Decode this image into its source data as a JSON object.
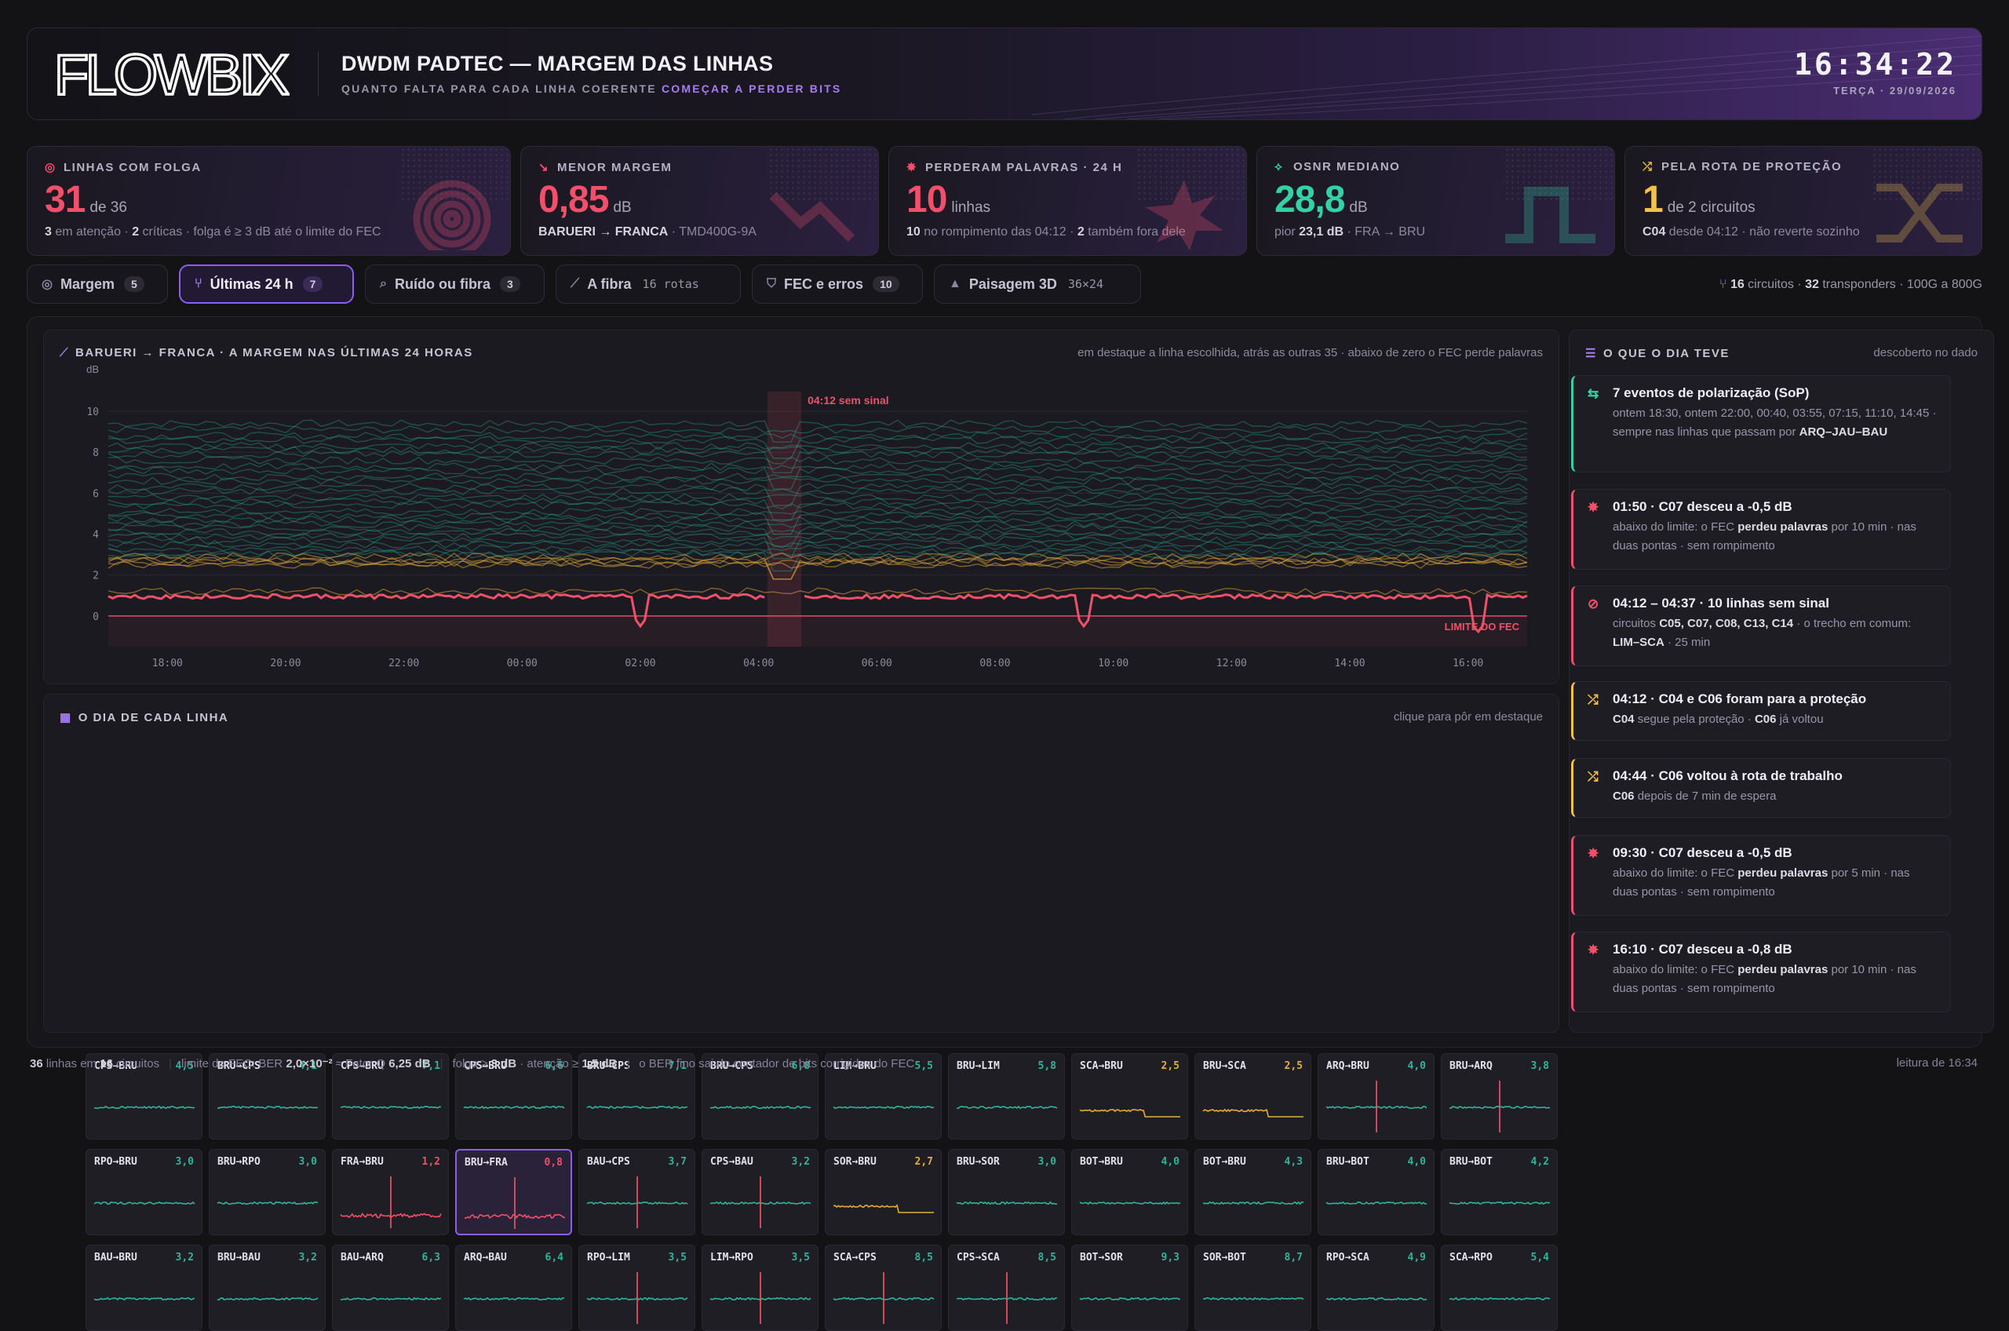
{
  "header": {
    "logo": "FLOWBIX",
    "title": "DWDM PADTEC — MARGEM DAS LINHAS",
    "subtitle_pre": "QUANTO FALTA PARA CADA LINHA COERENTE",
    "subtitle_accent": "COMEÇAR A PERDER BITS",
    "time": "16:34:22",
    "date": "TERÇA · 29/09/2026"
  },
  "kpis": [
    {
      "label": "LINHAS COM FOLGA",
      "big": "31",
      "unit": "de 36",
      "foot_a": "3",
      "foot_b": " em atenção · ",
      "foot_c": "2",
      "foot_d": " críticas · folga é ≥ 3 dB até o limite do FEC",
      "color": "#f2506a",
      "icon": "target-icon"
    },
    {
      "label": "MENOR MARGEM",
      "big": "0,85",
      "unit": "dB",
      "foot_a": "BARUERI → FRANCA",
      "foot_b": " · TMD400G-9A",
      "foot_c": "",
      "foot_d": "",
      "color": "#f2506a",
      "icon": "trend-down-icon"
    },
    {
      "label": "PERDERAM PALAVRAS · 24 H",
      "big": "10",
      "unit": "linhas",
      "foot_a": "10",
      "foot_b": " no rompimento das 04:12 · ",
      "foot_c": "2",
      "foot_d": " também fora dele",
      "color": "#f2506a",
      "icon": "burst-icon"
    },
    {
      "label": "OSNR MEDIANO",
      "big": "28,8",
      "unit": "dB",
      "foot_a": "",
      "foot_b": "pior ",
      "foot_c": "23,1 dB",
      "foot_d": " · FRA → BRU",
      "color": "#33d1a5",
      "icon": "pulse-icon"
    },
    {
      "label": "PELA ROTA DE PROTEÇÃO",
      "big": "1",
      "unit": "de 2 circuitos",
      "foot_a": "C04",
      "foot_b": " desde 04:12 · não reverte sozinho",
      "foot_c": "",
      "foot_d": "",
      "color": "#f3c24a",
      "icon": "shuffle-icon"
    }
  ],
  "tabs": [
    {
      "label": "Margem",
      "badge": "5",
      "meta": "",
      "icon": "◎"
    },
    {
      "label": "Últimas 24 h",
      "badge": "7",
      "meta": "",
      "icon": "⑂"
    },
    {
      "label": "Ruído ou fibra",
      "badge": "3",
      "meta": "",
      "icon": "⌕"
    },
    {
      "label": "A fibra",
      "badge": "",
      "meta": "16 rotas",
      "icon": "⟋"
    },
    {
      "label": "FEC e erros",
      "badge": "10",
      "meta": "",
      "icon": "⛉"
    },
    {
      "label": "Paisagem 3D",
      "badge": "",
      "meta": "36×24",
      "icon": "▲"
    }
  ],
  "tabs_right": {
    "a": "16",
    "b": " circuitos · ",
    "c": "32",
    "d": " transponders · 100G a 800G"
  },
  "chart_panel": {
    "title": "BARUERI → FRANCA · A MARGEM NAS ÚLTIMAS 24 HORAS",
    "note": "em destaque a linha escolhida, atrás as outras 35 · abaixo de zero o FEC perde palavras",
    "outage_label": "04:12 sem sinal",
    "limit_label": "LIMITE DO FEC"
  },
  "chart_data": {
    "type": "line",
    "ylabel": "dB",
    "ylim": [
      -1.5,
      10.5
    ],
    "yticks": [
      "10",
      "8",
      "6",
      "4",
      "2",
      "0"
    ],
    "xticks": [
      "18:00",
      "20:00",
      "22:00",
      "00:00",
      "02:00",
      "04:00",
      "06:00",
      "08:00",
      "10:00",
      "12:00",
      "14:00",
      "16:00"
    ],
    "highlight_series": {
      "name": "BARUERI → FRANCA",
      "baseline": 0.95,
      "dips": [
        {
          "x": "02:00",
          "y": -0.5
        },
        {
          "x": "09:30",
          "y": -0.5
        },
        {
          "x": "16:10",
          "y": -0.8
        }
      ],
      "outage": "04:12 – 04:37"
    },
    "background_series_count": 35,
    "colors": {
      "highlight": "#f2506a",
      "healthy": "#2fb59a",
      "warning": "#d6a23a"
    }
  },
  "grid_panel": {
    "title": "O DIA DE CADA LINHA",
    "note": "clique para pôr em destaque",
    "lines": [
      {
        "name": "CPS→BRU",
        "val": "4,5",
        "state": "ok",
        "spike": false
      },
      {
        "name": "BRU→CPS",
        "val": "4,1",
        "state": "ok",
        "spike": false
      },
      {
        "name": "CPS→BRU",
        "val": "7,1",
        "state": "ok",
        "spike": false
      },
      {
        "name": "CPS→BRU",
        "val": "6,6",
        "state": "ok",
        "spike": false
      },
      {
        "name": "BRU→CPS",
        "val": "7,1",
        "state": "ok",
        "spike": false
      },
      {
        "name": "BRU→CPS",
        "val": "6,8",
        "state": "ok",
        "spike": false
      },
      {
        "name": "LIM→BRU",
        "val": "5,5",
        "state": "ok",
        "spike": false
      },
      {
        "name": "BRU→LIM",
        "val": "5,8",
        "state": "ok",
        "spike": false
      },
      {
        "name": "SCA→BRU",
        "val": "2,5",
        "state": "warn",
        "spike": false
      },
      {
        "name": "BRU→SCA",
        "val": "2,5",
        "state": "warn",
        "spike": false
      },
      {
        "name": "ARQ→BRU",
        "val": "4,0",
        "state": "ok",
        "spike": true
      },
      {
        "name": "BRU→ARQ",
        "val": "3,8",
        "state": "ok",
        "spike": true
      },
      {
        "name": "RPO→BRU",
        "val": "3,0",
        "state": "ok",
        "spike": false
      },
      {
        "name": "BRU→RPO",
        "val": "3,0",
        "state": "ok",
        "spike": false
      },
      {
        "name": "FRA→BRU",
        "val": "1,2",
        "state": "crit",
        "spike": true
      },
      {
        "name": "BRU→FRA",
        "val": "0,8",
        "state": "crit",
        "spike": true
      },
      {
        "name": "BAU→CPS",
        "val": "3,7",
        "state": "ok",
        "spike": true
      },
      {
        "name": "CPS→BAU",
        "val": "3,2",
        "state": "ok",
        "spike": true
      },
      {
        "name": "SOR→BRU",
        "val": "2,7",
        "state": "warn",
        "spike": false
      },
      {
        "name": "BRU→SOR",
        "val": "3,0",
        "state": "ok",
        "spike": false
      },
      {
        "name": "BOT→BRU",
        "val": "4,0",
        "state": "ok",
        "spike": false
      },
      {
        "name": "BOT→BRU",
        "val": "4,3",
        "state": "ok",
        "spike": false
      },
      {
        "name": "BRU→BOT",
        "val": "4,0",
        "state": "ok",
        "spike": false
      },
      {
        "name": "BRU→BOT",
        "val": "4,2",
        "state": "ok",
        "spike": false
      },
      {
        "name": "BAU→BRU",
        "val": "3,2",
        "state": "ok",
        "spike": false
      },
      {
        "name": "BRU→BAU",
        "val": "3,2",
        "state": "ok",
        "spike": false
      },
      {
        "name": "BAU→ARQ",
        "val": "6,3",
        "state": "ok",
        "spike": false
      },
      {
        "name": "ARQ→BAU",
        "val": "6,4",
        "state": "ok",
        "spike": false
      },
      {
        "name": "RPO→LIM",
        "val": "3,5",
        "state": "ok",
        "spike": true
      },
      {
        "name": "LIM→RPO",
        "val": "3,5",
        "state": "ok",
        "spike": true
      },
      {
        "name": "SCA→CPS",
        "val": "8,5",
        "state": "ok",
        "spike": true
      },
      {
        "name": "CPS→SCA",
        "val": "8,5",
        "state": "ok",
        "spike": true
      },
      {
        "name": "BOT→SOR",
        "val": "9,3",
        "state": "ok",
        "spike": false
      },
      {
        "name": "SOR→BOT",
        "val": "8,7",
        "state": "ok",
        "spike": false
      },
      {
        "name": "RPO→SCA",
        "val": "4,9",
        "state": "ok",
        "spike": false
      },
      {
        "name": "SCA→RPO",
        "val": "5,4",
        "state": "ok",
        "spike": false
      }
    ],
    "selected_index": 15
  },
  "events_panel": {
    "title": "O QUE O DIA TEVE",
    "note": "descoberto no dado",
    "events": [
      {
        "icon": "⇆",
        "color": "#33d1a5",
        "title": "7 eventos de polarização (SoP)",
        "body": "ontem 18:30, ontem 22:00, 00:40, 03:55, 07:15, 11:10, 14:45 · sempre nas linhas que passam por <b>ARQ–JAU–BAU</b>"
      },
      {
        "icon": "✸",
        "color": "#f2506a",
        "title": "01:50 · C07 desceu a -0,5 dB",
        "body": "abaixo do limite: o FEC <b>perdeu palavras</b> por 10 min · nas duas pontas · sem rompimento"
      },
      {
        "icon": "⊘",
        "color": "#f2506a",
        "title": "04:12 – 04:37 · 10 linhas sem sinal",
        "body": "circuitos <b>C05, C07, C08, C13, C14</b> · o trecho em comum: <b>LIM–SCA</b> · 25 min"
      },
      {
        "icon": "⤮",
        "color": "#f3c24a",
        "title": "04:12 · C04 e C06 foram para a proteção",
        "body": "<b>C04</b> segue pela proteção · <b>C06</b> já voltou"
      },
      {
        "icon": "⤮",
        "color": "#f3c24a",
        "title": "04:44 · C06 voltou à rota de trabalho",
        "body": "<b>C06</b> depois de 7 min de espera"
      },
      {
        "icon": "✸",
        "color": "#f2506a",
        "title": "09:30 · C07 desceu a -0,5 dB",
        "body": "abaixo do limite: o FEC <b>perdeu palavras</b> por 5 min · nas duas pontas · sem rompimento"
      },
      {
        "icon": "✸",
        "color": "#f2506a",
        "title": "16:10 · C07 desceu a -0,8 dB",
        "body": "abaixo do limite: o FEC <b>perdeu palavras</b> por 10 min · nas duas pontas · sem rompimento"
      }
    ]
  },
  "footer": {
    "a_num": "36",
    "a_txt": " linhas em ",
    "a_num2": "16",
    "a_txt2": " circuitos",
    "b_txt": "limite do FEC: BER ",
    "b_num": "2,0×10⁻²",
    "b_txt2": " ≈ Fator Q ",
    "b_num2": "6,25 dB",
    "c_txt": "folga ≥ ",
    "c_num": "3 dB",
    "c_txt2": " · atenção ≥ ",
    "c_num2": "1,5 dB",
    "d_txt": "o BER fino sai do contador de bits corrigidos do FEC",
    "right": "leitura de 16:34"
  }
}
